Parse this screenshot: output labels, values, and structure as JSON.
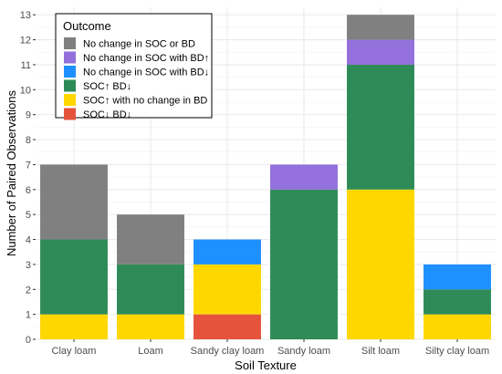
{
  "chart_data": {
    "type": "bar",
    "stacked": true,
    "title": "",
    "xlabel": "Soil Texture",
    "ylabel": "Number of Paired Observations",
    "ylim": [
      0,
      13.3
    ],
    "yticks": [
      0,
      1,
      2,
      3,
      4,
      5,
      6,
      7,
      8,
      9,
      10,
      11,
      12,
      13
    ],
    "grid": true,
    "legend_position": "top-left",
    "categories": [
      "Clay loam",
      "Loam",
      "Sandy clay loam",
      "Sandy loam",
      "Silt loam",
      "Silty clay loam"
    ],
    "legend_title": "Outcome",
    "series": [
      {
        "name": "No change in SOC or BD",
        "color": "#808080",
        "values": [
          3,
          2,
          0,
          0,
          1,
          0
        ]
      },
      {
        "name": "No change in SOC with BD↑",
        "color": "#9370DB",
        "values": [
          0,
          0,
          0,
          1,
          1,
          0
        ]
      },
      {
        "name": "No change in SOC with BD↓",
        "color": "#1E90FF",
        "values": [
          0,
          0,
          1,
          0,
          0,
          1
        ]
      },
      {
        "name": "SOC↑ BD↓",
        "color": "#2E8B57",
        "values": [
          3,
          2,
          0,
          6,
          5,
          1
        ]
      },
      {
        "name": "SOC↑ with no change in BD",
        "color": "#FFD700",
        "values": [
          1,
          1,
          2,
          0,
          6,
          1
        ]
      },
      {
        "name": "SOC↓ BD↓",
        "color": "#E5533C",
        "values": [
          0,
          0,
          1,
          0,
          0,
          0
        ]
      }
    ]
  }
}
